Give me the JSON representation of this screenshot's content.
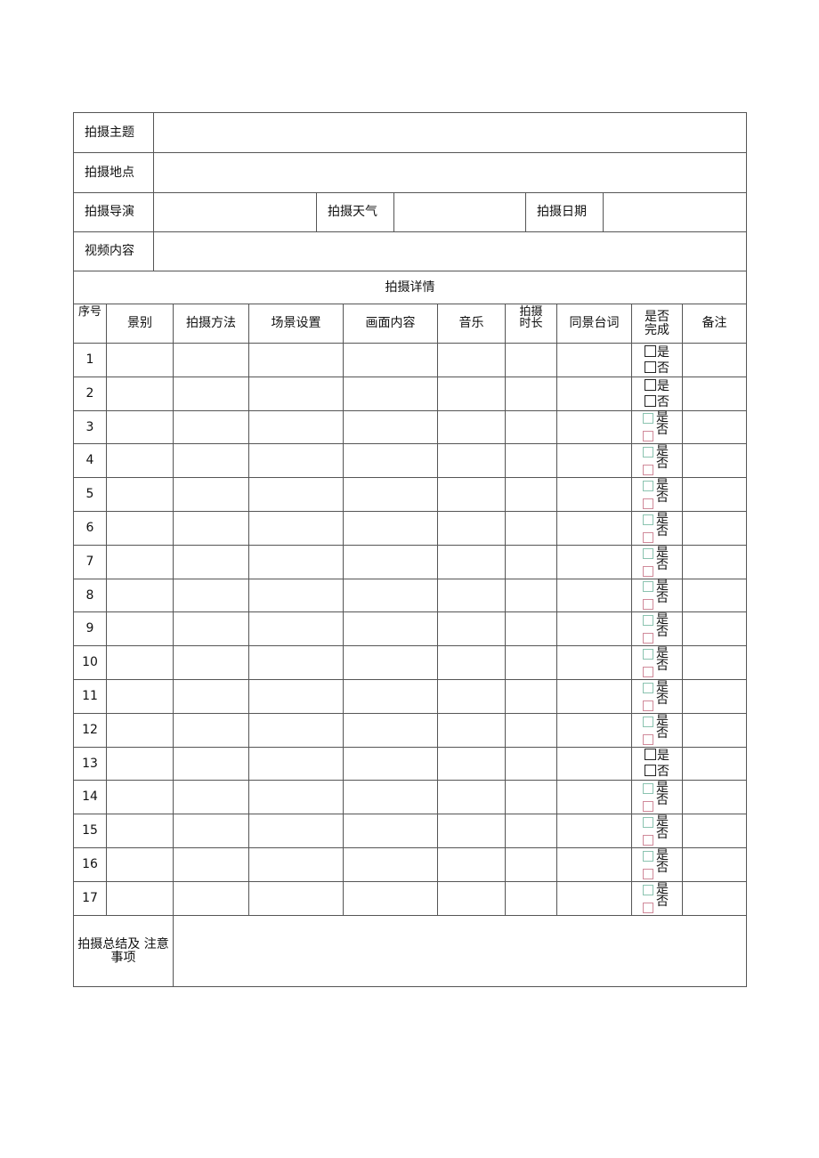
{
  "info": {
    "theme_label": "拍摄主题",
    "theme_value": "",
    "location_label": "拍摄地点",
    "location_value": "",
    "director_label": "拍摄导演",
    "director_value": "",
    "weather_label": "拍摄天气",
    "weather_value": "",
    "date_label": "拍摄日期",
    "date_value": "",
    "content_label": "视频内容",
    "content_value": ""
  },
  "details_title": "拍摄详情",
  "columns": [
    "序号",
    "景别",
    "拍摄方法",
    "场景设置",
    "画面内容",
    "音乐",
    "拍摄时长",
    "同景台词",
    "是否完成",
    "备注"
  ],
  "yes": "是",
  "no": "否",
  "rows": [
    {
      "no": "1",
      "style": "inline"
    },
    {
      "no": "2",
      "style": "inline"
    },
    {
      "no": "3",
      "style": "stacked"
    },
    {
      "no": "4",
      "style": "stacked"
    },
    {
      "no": "5",
      "style": "stacked"
    },
    {
      "no": "6",
      "style": "stacked"
    },
    {
      "no": "7",
      "style": "stacked"
    },
    {
      "no": "8",
      "style": "stacked"
    },
    {
      "no": "9",
      "style": "stacked"
    },
    {
      "no": "10",
      "style": "stacked"
    },
    {
      "no": "11",
      "style": "stacked"
    },
    {
      "no": "12",
      "style": "stacked"
    },
    {
      "no": "13",
      "style": "inline"
    },
    {
      "no": "14",
      "style": "stacked"
    },
    {
      "no": "15",
      "style": "stacked"
    },
    {
      "no": "16",
      "style": "stacked"
    },
    {
      "no": "17",
      "style": "stacked"
    }
  ],
  "summary_label": "拍摄总结及 注意事项",
  "summary_value": ""
}
